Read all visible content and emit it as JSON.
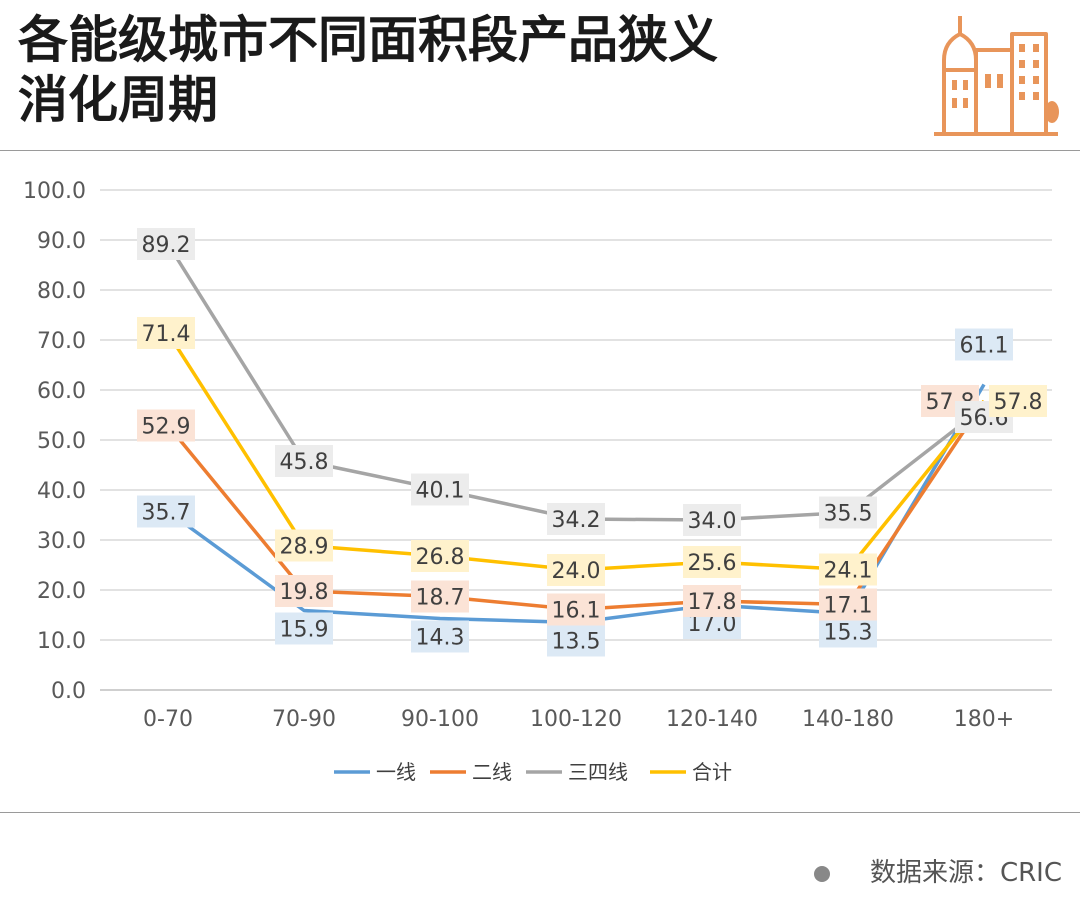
{
  "header": {
    "title_line1": "各能级城市不同面积段产品狭义",
    "title_line2": "消化周期",
    "logo_icon": "city-buildings-icon",
    "accent_color": "#e8955a"
  },
  "footer": {
    "source_text": "数据来源：CRIC"
  },
  "chart_data": {
    "type": "line",
    "title": "",
    "xlabel": "",
    "ylabel": "",
    "ylim": [
      0,
      100
    ],
    "yticks": [
      "0.0",
      "10.0",
      "20.0",
      "30.0",
      "40.0",
      "50.0",
      "60.0",
      "70.0",
      "80.0",
      "90.0",
      "100.0"
    ],
    "grid": true,
    "legend_position": "bottom",
    "categories": [
      "0-70",
      "70-90",
      "90-100",
      "100-120",
      "120-140",
      "140-180",
      "180+"
    ],
    "series": [
      {
        "name": "一线",
        "color": "#5b9bd5",
        "label_bg": "#dce9f5",
        "values": [
          35.7,
          15.9,
          14.3,
          13.5,
          17.0,
          15.3,
          61.1
        ]
      },
      {
        "name": "二线",
        "color": "#ed7d31",
        "label_bg": "#fbe3d6",
        "values": [
          52.9,
          19.8,
          18.7,
          16.1,
          17.8,
          17.1,
          57.8
        ]
      },
      {
        "name": "三四线",
        "color": "#a5a5a5",
        "label_bg": "#ececec",
        "values": [
          89.2,
          45.8,
          40.1,
          34.2,
          34.0,
          35.5,
          56.6
        ]
      },
      {
        "name": "合计",
        "color": "#ffc000",
        "label_bg": "#fff2cc",
        "values": [
          71.4,
          28.9,
          26.8,
          24.0,
          25.6,
          24.1,
          57.8
        ]
      }
    ]
  }
}
